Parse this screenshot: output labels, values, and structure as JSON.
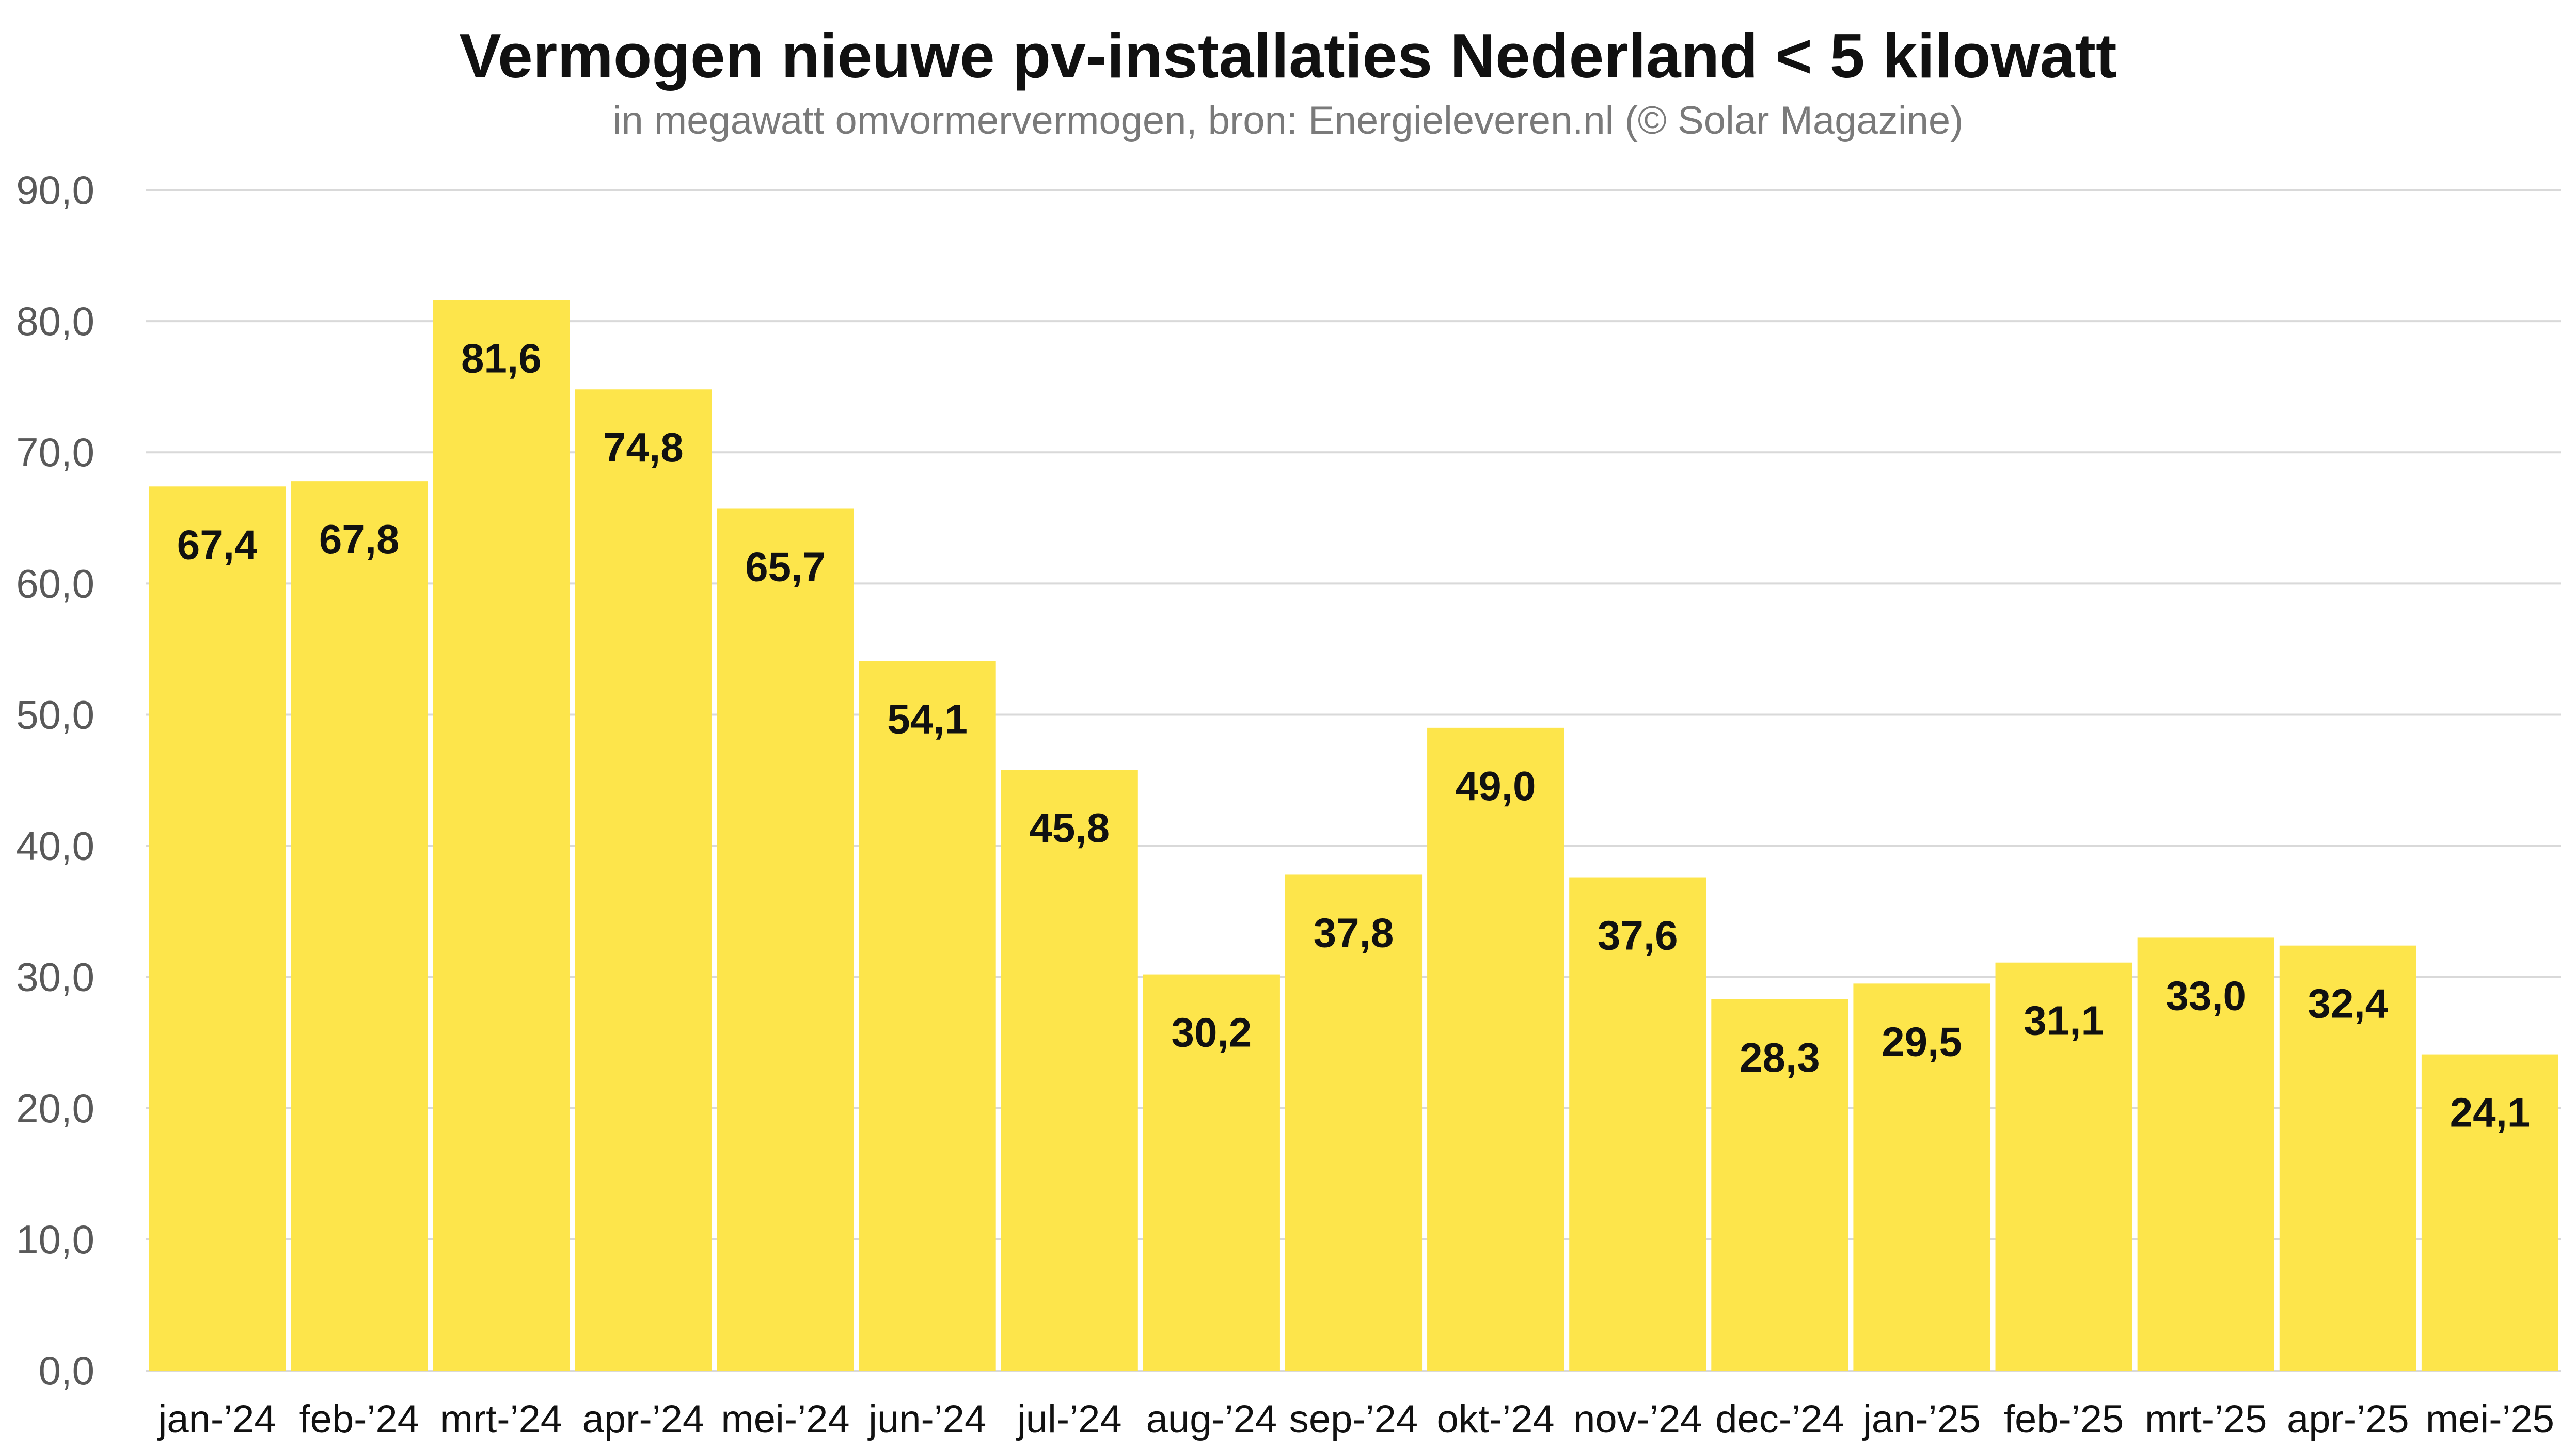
{
  "chart_data": {
    "type": "bar",
    "title": "Vermogen nieuwe pv-installaties Nederland < 5 kilowatt",
    "subtitle": "in megawatt omvormervermogen, bron: Energieleveren.nl (© Solar Magazine)",
    "xlabel": "",
    "ylabel": "",
    "ylim": [
      0,
      90
    ],
    "yticks": [
      "0,0",
      "10,0",
      "20,0",
      "30,0",
      "40,0",
      "50,0",
      "60,0",
      "70,0",
      "80,0",
      "90,0"
    ],
    "grid": true,
    "categories": [
      "jan-’24",
      "feb-’24",
      "mrt-’24",
      "apr-’24",
      "mei-’24",
      "jun-’24",
      "jul-’24",
      "aug-’24",
      "sep-’24",
      "okt-’24",
      "nov-’24",
      "dec-’24",
      "jan-’25",
      "feb-’25",
      "mrt-’25",
      "apr-’25",
      "mei-’25"
    ],
    "values": [
      67.4,
      67.8,
      81.6,
      74.8,
      65.7,
      54.1,
      45.8,
      30.2,
      37.8,
      49.0,
      37.6,
      28.3,
      29.5,
      31.1,
      33.0,
      32.4,
      24.1
    ],
    "value_labels": [
      "67,4",
      "67,8",
      "81,6",
      "74,8",
      "65,7",
      "54,1",
      "45,8",
      "30,2",
      "37,8",
      "49,0",
      "37,6",
      "28,3",
      "29,5",
      "31,1",
      "33,0",
      "32,4",
      "24,1"
    ],
    "colors": {
      "bar": "#FDE54B",
      "grid": "#d9d9d9",
      "axis_text": "#595959",
      "label_text": "#111111"
    }
  }
}
